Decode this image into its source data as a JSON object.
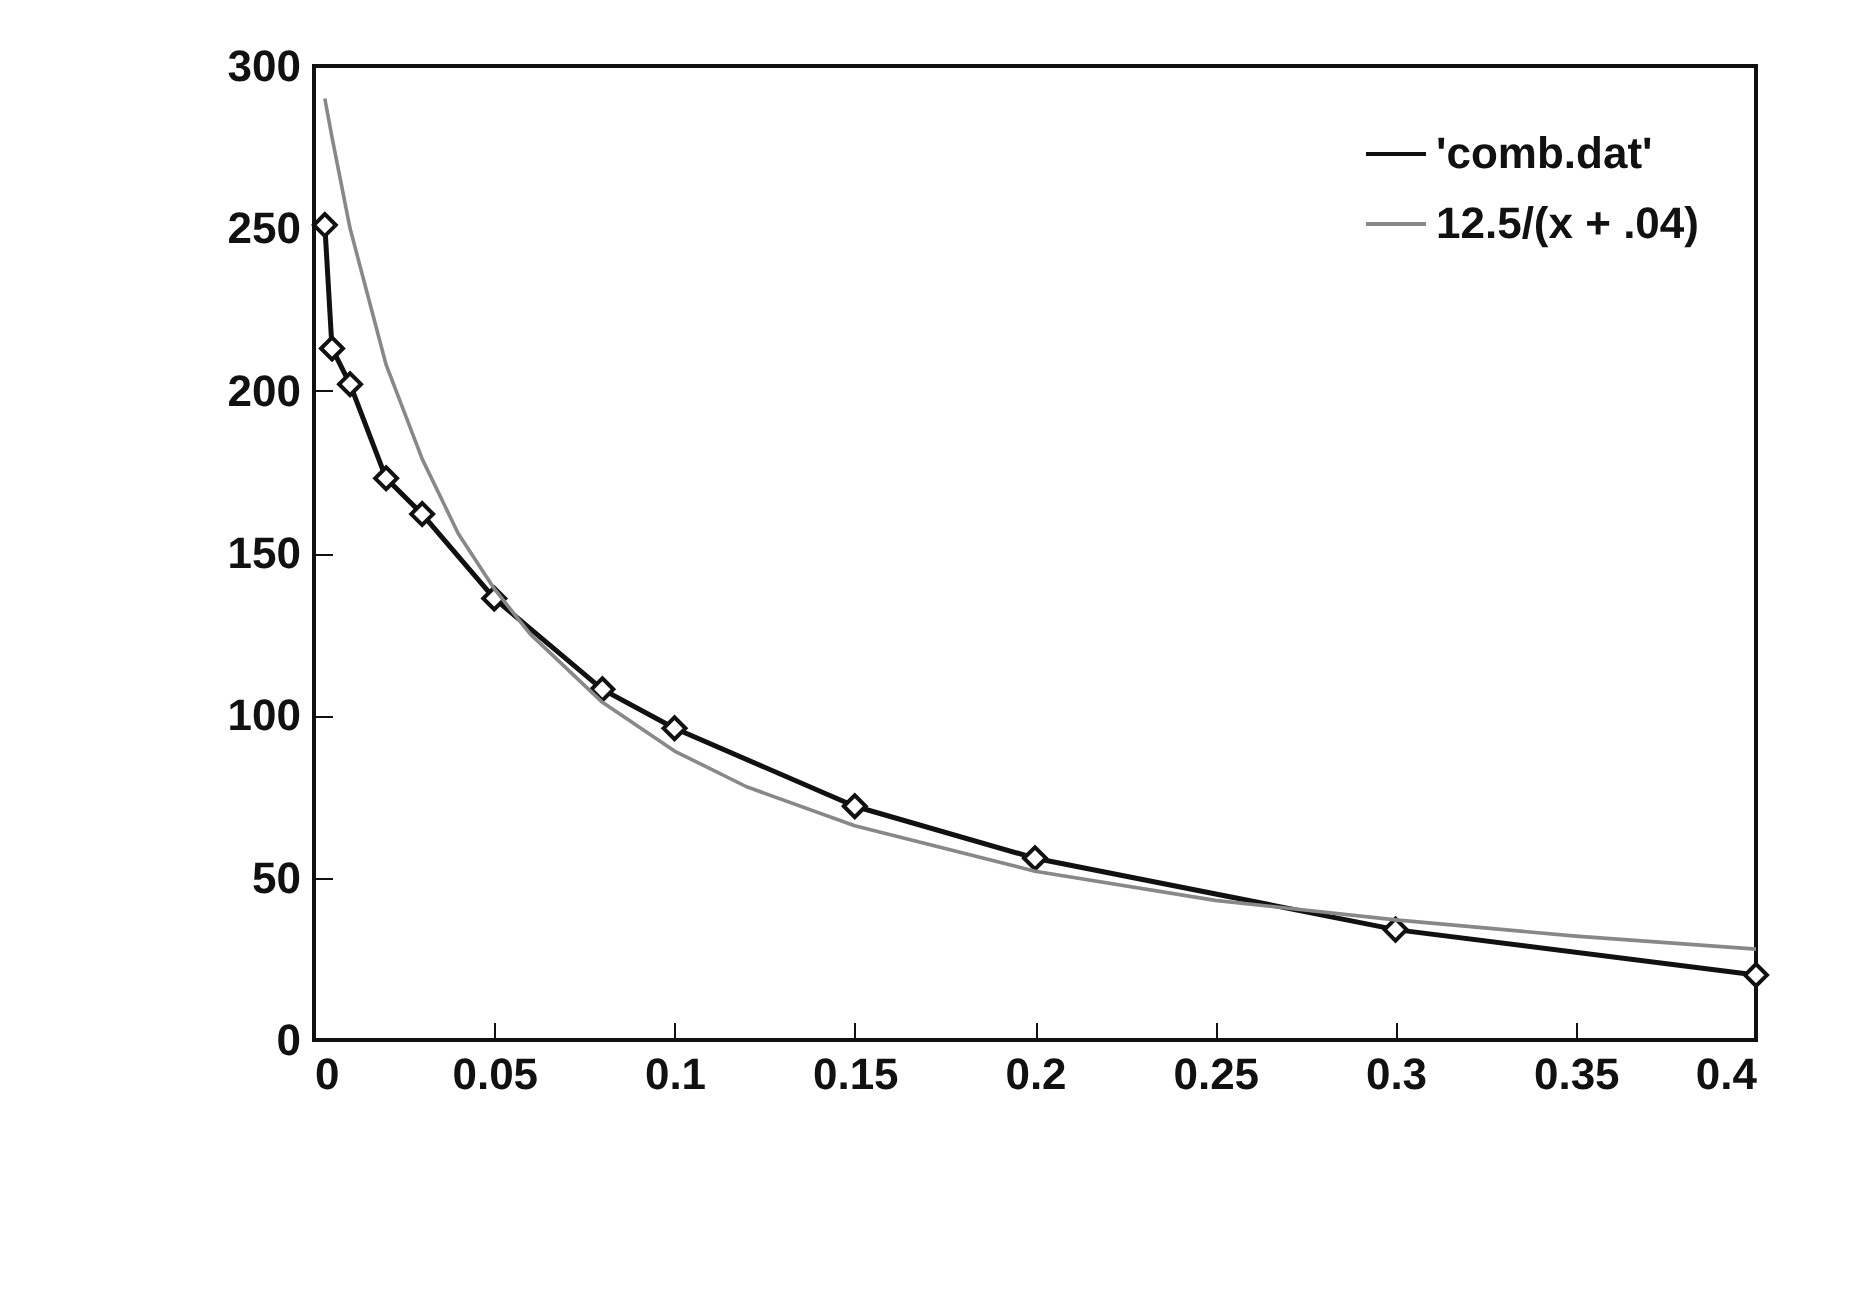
{
  "chart_data": {
    "type": "line",
    "xlim": [
      0,
      0.4
    ],
    "ylim": [
      0,
      300
    ],
    "xticks": [
      0,
      0.05,
      0.1,
      0.15,
      0.2,
      0.25,
      0.3,
      0.35,
      0.4
    ],
    "yticks": [
      0,
      50,
      100,
      150,
      200,
      250,
      300
    ],
    "grid": false,
    "legend": "top right",
    "series": [
      {
        "name": "'comb.dat'",
        "color": "#111111",
        "marker": "diamond",
        "x": [
          0.003,
          0.005,
          0.01,
          0.02,
          0.03,
          0.05,
          0.08,
          0.1,
          0.15,
          0.2,
          0.3,
          0.4
        ],
        "values": [
          251,
          213,
          202,
          173,
          162,
          136,
          108,
          96,
          72,
          56,
          34,
          20
        ]
      },
      {
        "name": "12.5/(x + .04)",
        "color": "#888888",
        "marker": "none",
        "x": [
          0.003,
          0.005,
          0.01,
          0.02,
          0.03,
          0.04,
          0.05,
          0.06,
          0.08,
          0.1,
          0.12,
          0.15,
          0.2,
          0.25,
          0.3,
          0.35,
          0.4
        ],
        "values": [
          290,
          278,
          250,
          208,
          179,
          156,
          139,
          125,
          104,
          89,
          78,
          66,
          52,
          43,
          37,
          32,
          28
        ]
      }
    ]
  }
}
